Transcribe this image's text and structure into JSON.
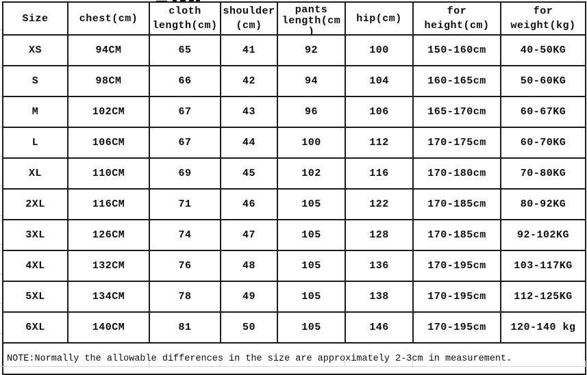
{
  "table": {
    "columns": [
      {
        "id": "size",
        "lines": [
          "Size"
        ]
      },
      {
        "id": "chest",
        "lines": [
          "chest(cm)"
        ]
      },
      {
        "id": "cloth-length",
        "lines": [
          "cloth",
          "length(cm)"
        ]
      },
      {
        "id": "shoulder",
        "lines": [
          "shoulder",
          "(cm)"
        ]
      },
      {
        "id": "pants-length",
        "lines": [
          "pants",
          "length(cm",
          ")"
        ]
      },
      {
        "id": "hip",
        "lines": [
          "hip(cm)"
        ]
      },
      {
        "id": "for-height",
        "lines": [
          "for",
          "height(cm)"
        ]
      },
      {
        "id": "for-weight",
        "lines": [
          "for",
          "weight(kg)"
        ]
      }
    ],
    "rows": [
      {
        "cells": [
          "XS",
          "94CM",
          "65",
          "41",
          "92",
          "100",
          "150-160cm",
          "40-50KG"
        ]
      },
      {
        "cells": [
          "S",
          "98CM",
          "66",
          "42",
          "94",
          "104",
          "160-165cm",
          "50-60KG"
        ]
      },
      {
        "cells": [
          "M",
          "102CM",
          "67",
          "43",
          "96",
          "106",
          "165-170cm",
          "60-67KG"
        ]
      },
      {
        "cells": [
          "L",
          "106CM",
          "67",
          "44",
          "100",
          "112",
          "170-175cm",
          "60-70KG"
        ]
      },
      {
        "cells": [
          "XL",
          "110CM",
          "69",
          "45",
          "102",
          "116",
          "170-180cm",
          "70-80KG"
        ]
      },
      {
        "cells": [
          "2XL",
          "116CM",
          "71",
          "46",
          "105",
          "122",
          "170-185cm",
          "80-92KG"
        ]
      },
      {
        "cells": [
          "3XL",
          "126CM",
          "74",
          "47",
          "105",
          "128",
          "170-185cm",
          "92-102KG"
        ]
      },
      {
        "cells": [
          "4XL",
          "132CM",
          "76",
          "48",
          "105",
          "136",
          "170-195cm",
          "103-117KG"
        ]
      },
      {
        "cells": [
          "5XL",
          "134CM",
          "78",
          "49",
          "105",
          "138",
          "170-195cm",
          "112-125KG"
        ]
      },
      {
        "cells": [
          "6XL",
          "140CM",
          "81",
          "50",
          "105",
          "146",
          "170-195cm",
          "120-140 kg"
        ]
      }
    ]
  },
  "note": "NOTE:Normally the allowable differences in the size are approximately 2-3cm in measurement.",
  "colors": {
    "table_border": "#1b1b1b",
    "text": "#0d0d0d",
    "faint_gridline": "#d2d2d2",
    "background": "#ffffff"
  }
}
